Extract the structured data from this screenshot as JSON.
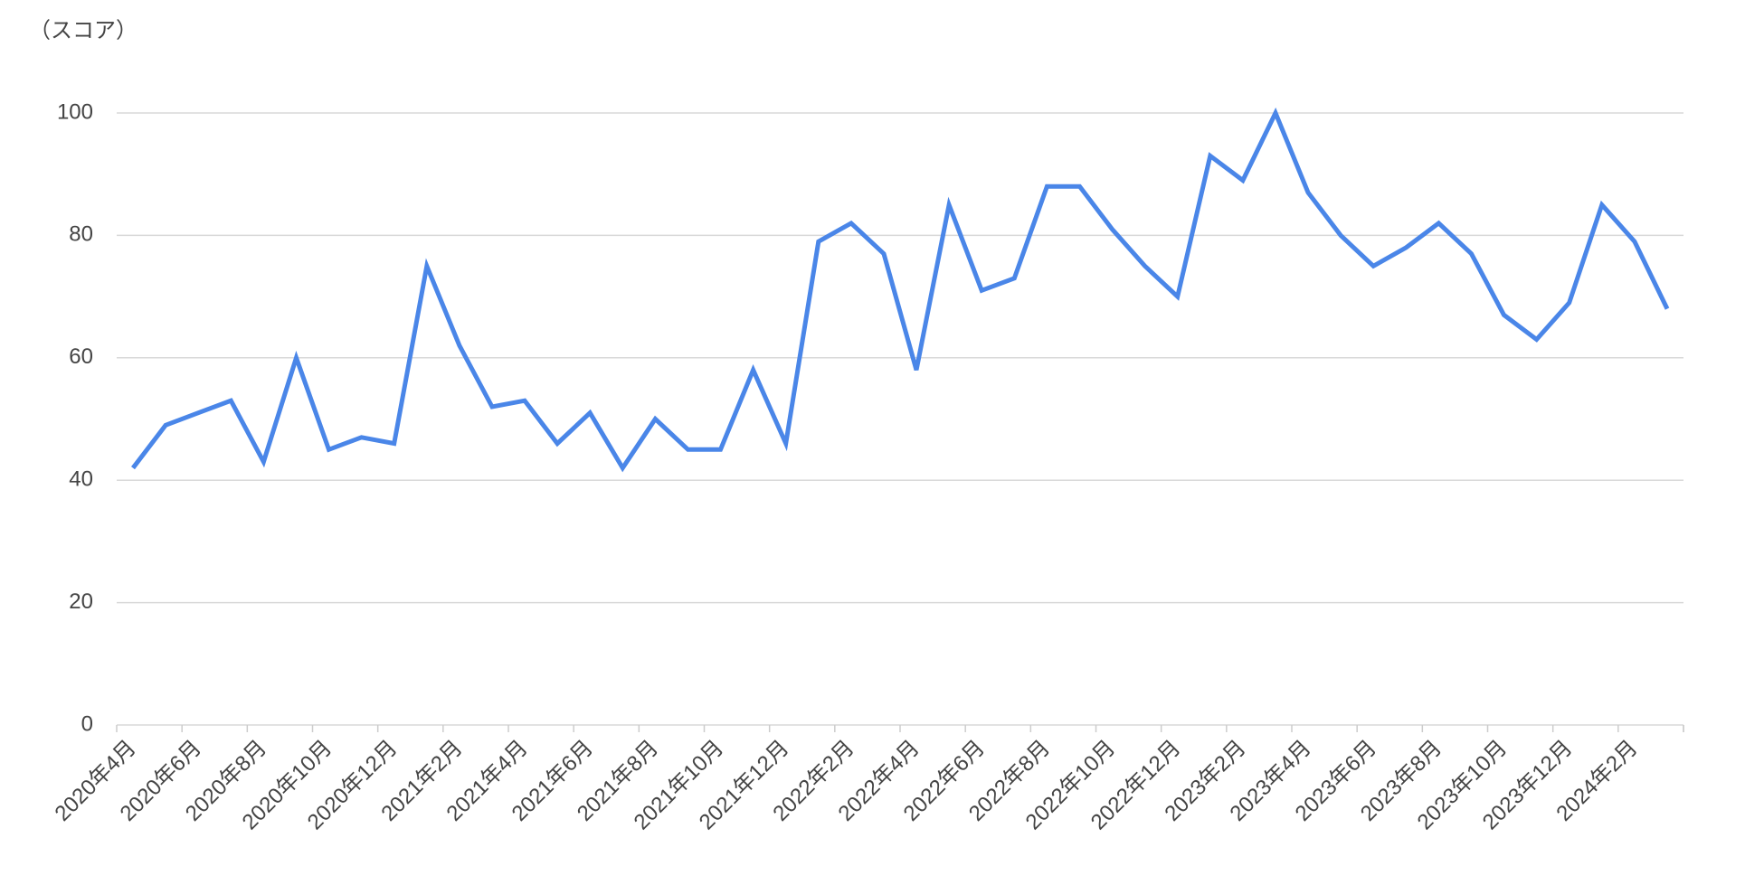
{
  "chart_data": {
    "type": "line",
    "y_label": "（スコア）",
    "categories": [
      "2020年4月",
      null,
      "2020年6月",
      null,
      "2020年8月",
      null,
      "2020年10月",
      null,
      "2020年12月",
      null,
      "2021年2月",
      null,
      "2021年4月",
      null,
      "2021年6月",
      null,
      "2021年8月",
      null,
      "2021年10月",
      null,
      "2021年12月",
      null,
      "2022年2月",
      null,
      "2022年4月",
      null,
      "2022年6月",
      null,
      "2022年8月",
      null,
      "2022年10月",
      null,
      "2022年12月",
      null,
      "2023年2月",
      null,
      "2023年4月",
      null,
      "2023年6月",
      null,
      "2023年8月",
      null,
      "2023年10月",
      null,
      "2023年12月",
      null,
      "2024年2月",
      null
    ],
    "values": [
      42,
      49,
      51,
      53,
      43,
      60,
      45,
      47,
      46,
      75,
      62,
      52,
      53,
      46,
      51,
      42,
      50,
      45,
      45,
      58,
      46,
      79,
      82,
      77,
      58,
      85,
      71,
      73,
      88,
      88,
      81,
      75,
      70,
      93,
      89,
      100,
      87,
      80,
      75,
      78,
      82,
      77,
      67,
      63,
      69,
      85,
      79,
      68
    ],
    "color": "#4a86e8",
    "ylim": [
      0,
      100
    ],
    "yticks": [
      0,
      20,
      40,
      60,
      80,
      100
    ],
    "grid": true
  }
}
